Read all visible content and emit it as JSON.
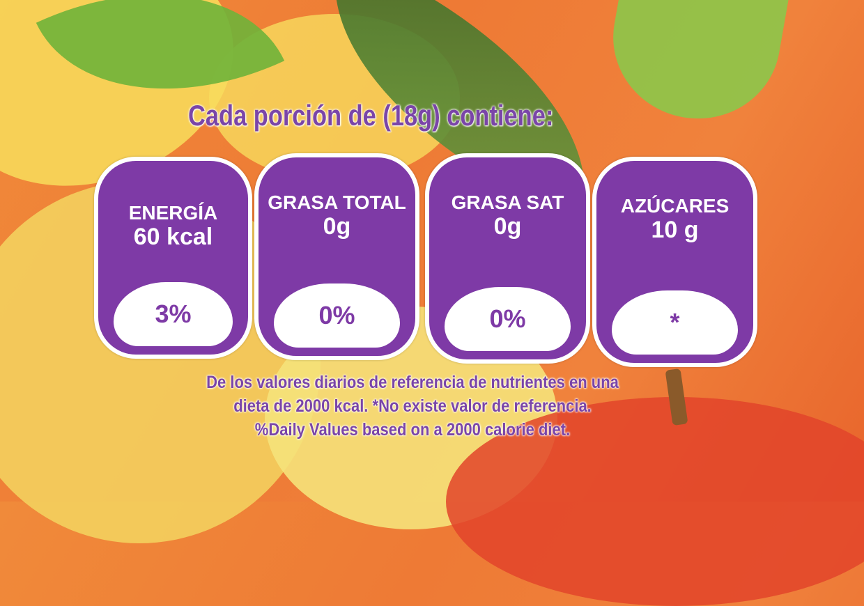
{
  "title": "Cada porción de (18g) contiene:",
  "badges": [
    {
      "label": "ENERGÍA",
      "value": "60 kcal",
      "percent": "3%"
    },
    {
      "label": "GRASA TOTAL",
      "value": "0g",
      "percent": "0%"
    },
    {
      "label": "GRASA SAT",
      "value": "0g",
      "percent": "0%"
    },
    {
      "label": "AZÚCARES",
      "value": "10 g",
      "percent": "*"
    }
  ],
  "footnote": {
    "line1": "De los valores diarios de referencia de nutrientes en una",
    "line2": "dieta de 2000 kcal. *No existe valor de referencia.",
    "line3": "%Daily Values based on a 2000 calorie diet."
  },
  "colors": {
    "badge": "#7e3aa6",
    "text": "#7a45a8",
    "background": "#f08a3a"
  }
}
